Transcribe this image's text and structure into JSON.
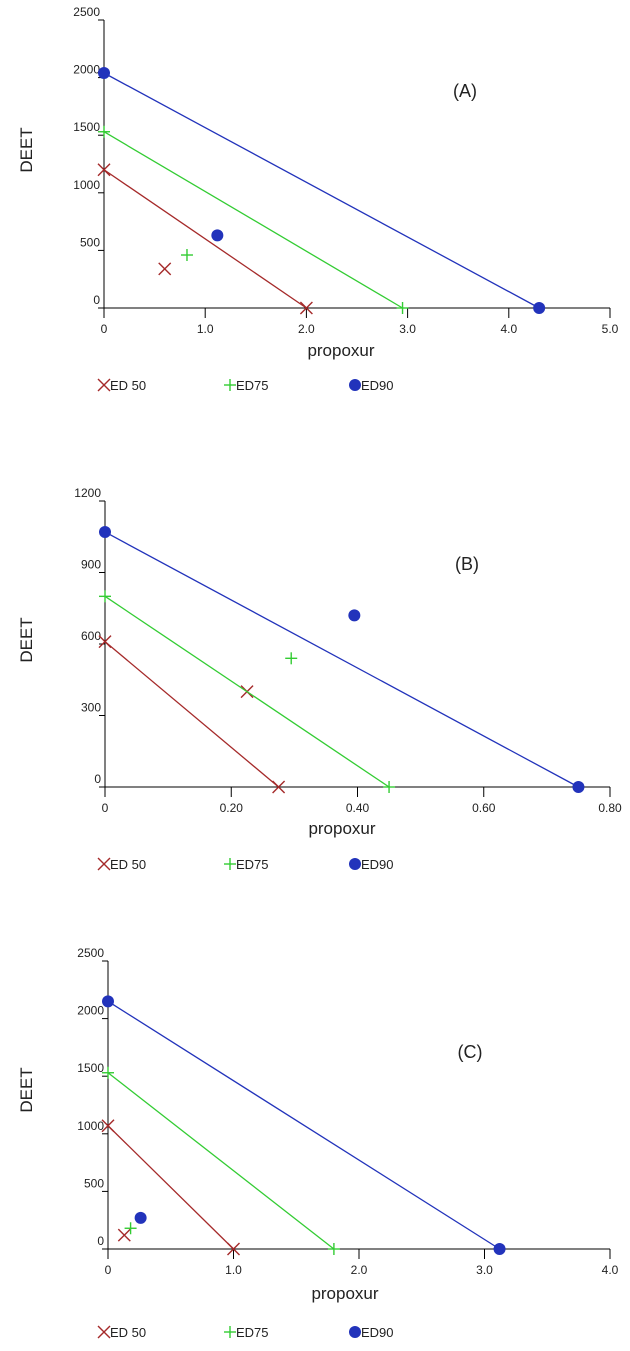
{
  "colors": {
    "ed50": "#a52a2a",
    "ed75": "#33cc33",
    "ed90": "#2233bb",
    "axis": "#000000"
  },
  "chart_data": [
    {
      "type": "scatter",
      "panel_label": "(A)",
      "xlabel": "propoxur",
      "ylabel": "DEET",
      "xlim": [
        0,
        5.0
      ],
      "ylim": [
        0,
        2500
      ],
      "xticks": [
        0,
        1.0,
        2.0,
        3.0,
        4.0,
        5.0
      ],
      "xtick_labels": [
        "0",
        "1.0",
        "2.0",
        "3.0",
        "4.0",
        "5.0"
      ],
      "yticks": [
        0,
        500,
        1000,
        1500,
        2000,
        2500
      ],
      "ytick_labels": [
        "0",
        "500",
        "1000",
        "1500",
        "2000",
        "2500"
      ],
      "legend": [
        "ED 50",
        "ED75",
        "ED90"
      ],
      "series": [
        {
          "name": "ED 50",
          "marker": "x",
          "line": [
            [
              0,
              1200
            ],
            [
              2.0,
              0
            ]
          ],
          "points": [
            [
              0,
              1200
            ],
            [
              2.0,
              0
            ],
            [
              0.6,
              340
            ]
          ]
        },
        {
          "name": "ED75",
          "marker": "+",
          "line": [
            [
              0,
              1530
            ],
            [
              2.95,
              0
            ]
          ],
          "points": [
            [
              0,
              1530
            ],
            [
              2.95,
              0
            ],
            [
              0.82,
              460
            ]
          ]
        },
        {
          "name": "ED90",
          "marker": "dot",
          "line": [
            [
              0,
              2040
            ],
            [
              4.3,
              0
            ]
          ],
          "points": [
            [
              0,
              2040
            ],
            [
              4.3,
              0
            ],
            [
              1.12,
              630
            ]
          ]
        }
      ]
    },
    {
      "type": "scatter",
      "panel_label": "(B)",
      "xlabel": "propoxur",
      "ylabel": "DEET",
      "xlim": [
        0,
        0.8
      ],
      "ylim": [
        0,
        1200
      ],
      "xticks": [
        0,
        0.2,
        0.4,
        0.6,
        0.8
      ],
      "xtick_labels": [
        "0",
        "0.20",
        "0.40",
        "0.60",
        "0.80"
      ],
      "yticks": [
        0,
        300,
        600,
        900,
        1200
      ],
      "ytick_labels": [
        "0",
        "300",
        "600",
        "900",
        "1200"
      ],
      "legend": [
        "ED 50",
        "ED75",
        "ED90"
      ],
      "series": [
        {
          "name": "ED 50",
          "marker": "x",
          "line": [
            [
              0,
              610
            ],
            [
              0.275,
              0
            ]
          ],
          "points": [
            [
              0,
              610
            ],
            [
              0.275,
              0
            ],
            [
              0.225,
              400
            ]
          ]
        },
        {
          "name": "ED75",
          "marker": "+",
          "line": [
            [
              0,
              800
            ],
            [
              0.45,
              0
            ]
          ],
          "points": [
            [
              0,
              800
            ],
            [
              0.45,
              0
            ],
            [
              0.295,
              540
            ]
          ]
        },
        {
          "name": "ED90",
          "marker": "dot",
          "line": [
            [
              0,
              1070
            ],
            [
              0.75,
              0
            ]
          ],
          "points": [
            [
              0,
              1070
            ],
            [
              0.75,
              0
            ],
            [
              0.395,
              720
            ]
          ]
        }
      ]
    },
    {
      "type": "scatter",
      "panel_label": "(C)",
      "xlabel": "propoxur",
      "ylabel": "DEET",
      "xlim": [
        0,
        4.0
      ],
      "ylim": [
        0,
        2500
      ],
      "xticks": [
        0,
        1.0,
        2.0,
        3.0,
        4.0
      ],
      "xtick_labels": [
        "0",
        "1.0",
        "2.0",
        "3.0",
        "4.0"
      ],
      "yticks": [
        0,
        500,
        1000,
        1500,
        2000,
        2500
      ],
      "ytick_labels": [
        "0",
        "500",
        "1000",
        "1500",
        "2000",
        "2500"
      ],
      "legend": [
        "ED 50",
        "ED75",
        "ED90"
      ],
      "series": [
        {
          "name": "ED 50",
          "marker": "x",
          "line": [
            [
              0,
              1070
            ],
            [
              1.0,
              0
            ]
          ],
          "points": [
            [
              0,
              1070
            ],
            [
              1.0,
              0
            ],
            [
              0.13,
              120
            ]
          ]
        },
        {
          "name": "ED75",
          "marker": "+",
          "line": [
            [
              0,
              1530
            ],
            [
              1.8,
              0
            ]
          ],
          "points": [
            [
              0,
              1530
            ],
            [
              1.8,
              0
            ],
            [
              0.18,
              180
            ]
          ]
        },
        {
          "name": "ED90",
          "marker": "dot",
          "line": [
            [
              0,
              2150
            ],
            [
              3.12,
              0
            ]
          ],
          "points": [
            [
              0,
              2150
            ],
            [
              3.12,
              0
            ],
            [
              0.26,
              270
            ]
          ]
        }
      ]
    }
  ]
}
